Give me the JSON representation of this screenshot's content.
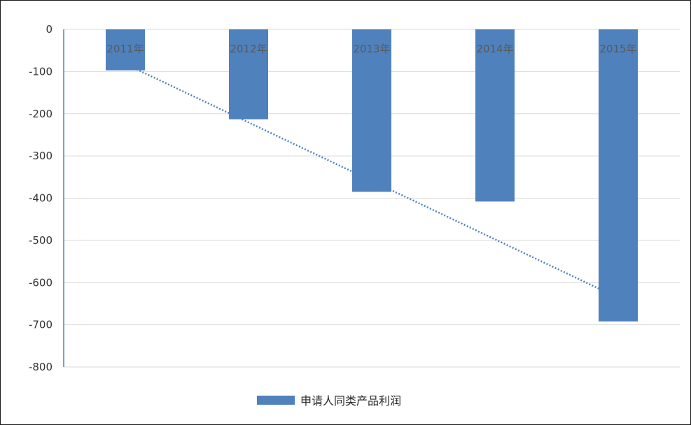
{
  "chart_data": {
    "type": "bar",
    "categories": [
      "2011年",
      "2012年",
      "2013年",
      "2014年",
      "2015年"
    ],
    "series": [
      {
        "name": "申请人同类产品利润",
        "values": [
          -97,
          -213,
          -385,
          -408,
          -692
        ],
        "color": "#4f81bd"
      }
    ],
    "trendline": {
      "type": "linear",
      "style": "dotted",
      "color": "#4f81bd"
    },
    "yticks": [
      0,
      -100,
      -200,
      -300,
      -400,
      -500,
      -600,
      -700,
      -800
    ],
    "ylim": [
      -800,
      0
    ],
    "grid": true,
    "legend_position": "bottom",
    "title": "",
    "xlabel": "",
    "ylabel": ""
  }
}
